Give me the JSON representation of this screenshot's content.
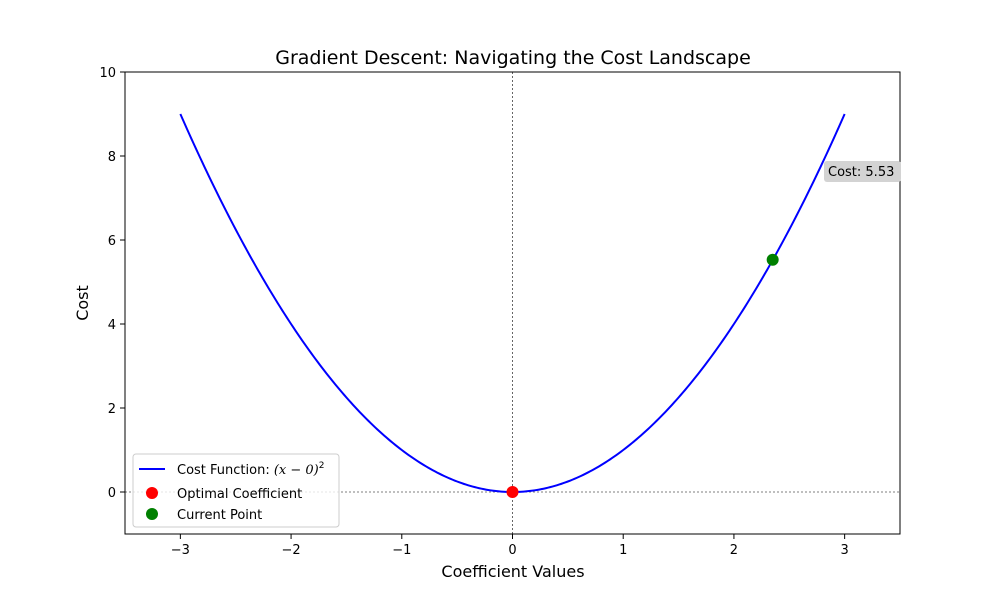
{
  "chart_data": {
    "type": "line",
    "title": "Gradient Descent: Navigating the Cost Landscape",
    "xlabel": "Coefficient Values",
    "ylabel": "Cost",
    "xlim": [
      -3.5,
      3.5
    ],
    "ylim": [
      -1,
      10
    ],
    "xticks": [
      -3,
      -2,
      -1,
      0,
      1,
      2,
      3
    ],
    "xtick_labels": [
      "−3",
      "−2",
      "−1",
      "0",
      "1",
      "2",
      "3"
    ],
    "yticks": [
      0,
      2,
      4,
      6,
      8,
      10
    ],
    "ytick_labels": [
      "0",
      "2",
      "4",
      "6",
      "8",
      "10"
    ],
    "grid": false,
    "reference_lines": {
      "x": 0,
      "y": 0,
      "style": "dashed",
      "color": "#000000"
    },
    "series": [
      {
        "name": "Cost Function: (x − 0)²",
        "kind": "line",
        "function": "x^2",
        "x_range": [
          -3,
          3
        ],
        "color": "#0000ff"
      },
      {
        "name": "Optimal Coefficient",
        "kind": "point",
        "x": 0,
        "y": 0,
        "color": "#ff0000"
      },
      {
        "name": "Current Point",
        "kind": "point",
        "x": 2.35,
        "y": 5.53,
        "color": "#008000"
      }
    ],
    "annotation": {
      "text": "Cost: 5.53",
      "anchor_x": 2.35,
      "anchor_y": 5.53,
      "box_color": "#d3d3d3"
    },
    "legend": {
      "placement": "lower-left",
      "entries": [
        {
          "label_prefix": "Cost Function: ",
          "label_math": "(x − 0)",
          "label_sup": "2",
          "marker": "line",
          "color": "#0000ff"
        },
        {
          "label": "Optimal Coefficient",
          "marker": "dot",
          "color": "#ff0000"
        },
        {
          "label": "Current Point",
          "marker": "dot",
          "color": "#008000"
        }
      ]
    }
  }
}
